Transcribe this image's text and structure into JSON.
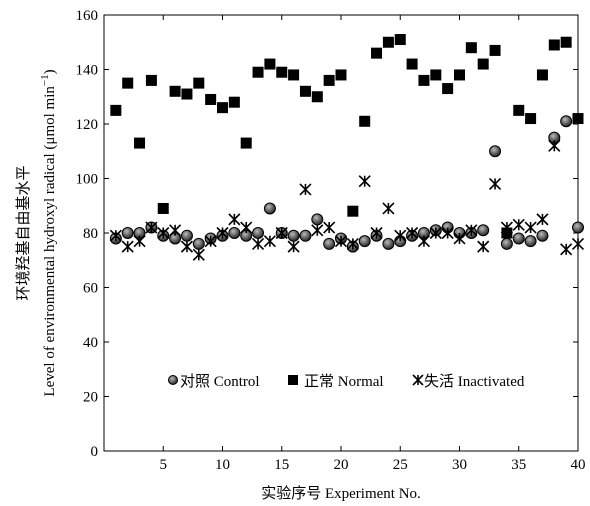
{
  "chart_data": {
    "type": "scatter",
    "xlabel": "实验序号 Experiment No.",
    "ylabel_cn": "环境羟基自由基水平",
    "ylabel_en": "Level of environmental hydroxyl radical (μmol min",
    "ylabel_sup": "−1",
    "ylabel_close": ")",
    "xlim": [
      0,
      40
    ],
    "ylim": [
      0,
      160
    ],
    "x_ticks": [
      5,
      10,
      15,
      20,
      25,
      30,
      35,
      40
    ],
    "y_ticks": [
      0,
      20,
      40,
      60,
      80,
      100,
      120,
      140,
      160
    ],
    "grid": false,
    "legend_position": "center",
    "series": [
      {
        "name": "对照 Control",
        "marker": "circle",
        "color": "#000000",
        "x": [
          1,
          2,
          3,
          4,
          5,
          6,
          7,
          8,
          9,
          10,
          11,
          12,
          13,
          14,
          15,
          16,
          17,
          18,
          19,
          20,
          21,
          22,
          23,
          24,
          25,
          26,
          27,
          28,
          29,
          30,
          31,
          32,
          33,
          34,
          35,
          36,
          37,
          38,
          39,
          40
        ],
        "y": [
          78,
          80,
          80,
          82,
          79,
          78,
          79,
          76,
          78,
          79,
          80,
          79,
          80,
          89,
          80,
          79,
          79,
          85,
          76,
          78,
          75,
          77,
          79,
          76,
          77,
          79,
          80,
          81,
          82,
          80,
          80,
          81,
          110,
          76,
          78,
          77,
          79,
          115,
          121,
          82
        ]
      },
      {
        "name": "正常 Normal",
        "marker": "square",
        "color": "#000000",
        "x": [
          1,
          2,
          3,
          4,
          5,
          6,
          7,
          8,
          9,
          10,
          11,
          12,
          13,
          14,
          15,
          16,
          17,
          18,
          19,
          20,
          21,
          22,
          23,
          24,
          25,
          26,
          27,
          28,
          29,
          30,
          31,
          32,
          33,
          34,
          35,
          36,
          37,
          38,
          39,
          40
        ],
        "y": [
          125,
          135,
          113,
          136,
          89,
          132,
          131,
          135,
          129,
          126,
          128,
          113,
          139,
          142,
          139,
          138,
          132,
          130,
          136,
          138,
          88,
          121,
          146,
          150,
          151,
          142,
          136,
          138,
          133,
          138,
          148,
          142,
          147,
          80,
          125,
          122,
          138,
          149,
          150,
          122
        ]
      },
      {
        "name": "失活 Inactivated",
        "marker": "star",
        "color": "#000000",
        "x": [
          1,
          2,
          3,
          4,
          5,
          6,
          7,
          8,
          9,
          10,
          11,
          12,
          13,
          14,
          15,
          16,
          17,
          18,
          19,
          20,
          21,
          22,
          23,
          24,
          25,
          26,
          27,
          28,
          29,
          30,
          31,
          32,
          33,
          34,
          35,
          36,
          37,
          38,
          39,
          40
        ],
        "y": [
          79,
          75,
          77,
          82,
          80,
          81,
          75,
          72,
          77,
          80,
          85,
          82,
          76,
          77,
          80,
          75,
          96,
          81,
          82,
          77,
          76,
          99,
          80,
          89,
          79,
          80,
          77,
          80,
          80,
          78,
          81,
          75,
          98,
          82,
          83,
          82,
          85,
          112,
          74,
          76
        ]
      }
    ]
  }
}
